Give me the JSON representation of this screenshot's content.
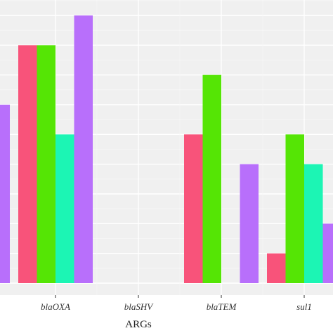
{
  "chart_data": {
    "type": "bar",
    "xlabel": "ARGs",
    "categories": [
      "blaOXA",
      "blaSHV",
      "blaTEM",
      "sul1"
    ],
    "series": [
      {
        "color": "#f8537a",
        "values": [
          8,
          0,
          5,
          1
        ]
      },
      {
        "color": "#55e505",
        "values": [
          8,
          0,
          7,
          5
        ]
      },
      {
        "color": "#1cf5b4",
        "values": [
          5,
          0,
          0,
          4
        ]
      },
      {
        "color": "#b86ffb",
        "values": [
          9,
          0,
          4,
          2
        ]
      }
    ],
    "leading_partial_bar": {
      "color": "#b86ffb",
      "value": 6
    },
    "ylim": [
      0,
      9.5
    ],
    "grid": true,
    "colors": {
      "panel": "#f0f0f0",
      "grid_major": "#ffffff",
      "grid_minor": "#f7f7f7",
      "axis_text": "#333333"
    }
  }
}
